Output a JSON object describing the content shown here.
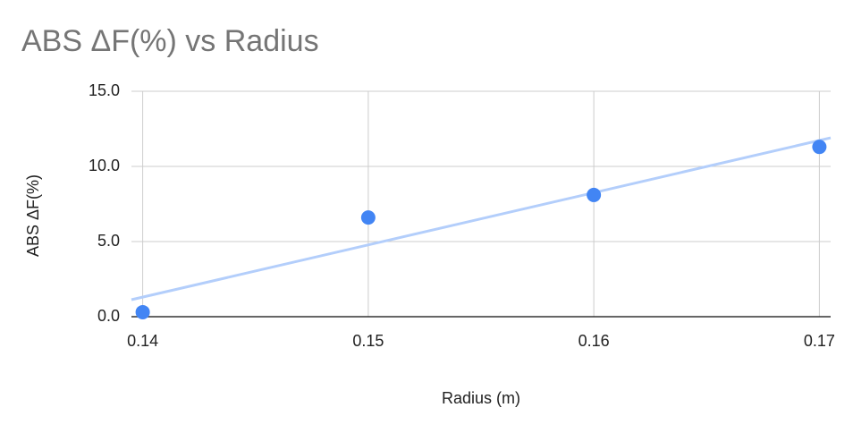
{
  "chart_data": {
    "type": "scatter",
    "title": "ABS ΔF(%) vs Radius",
    "x_label": "Radius (m)",
    "y_label": "ABS ΔF(%)",
    "series": [
      {
        "name": "ABS ΔF(%)",
        "color": "#4285f4",
        "x": [
          0.14,
          0.15,
          0.16,
          0.17
        ],
        "values": [
          0.3,
          6.6,
          8.1,
          11.3
        ]
      }
    ],
    "trendline": {
      "color": "#b3cefb",
      "x": [
        0.1395,
        0.1705
      ],
      "values": [
        1.13,
        11.9
      ]
    },
    "xlim": [
      0.1395,
      0.1705
    ],
    "xticks": [
      0.14,
      0.15,
      0.16,
      0.17
    ],
    "ylim": [
      0,
      15
    ],
    "yticks": [
      {
        "value": 0,
        "label": "0.0"
      },
      {
        "value": 5,
        "label": "5.0"
      },
      {
        "value": 10,
        "label": "10.0"
      },
      {
        "value": 15,
        "label": "15.0"
      }
    ],
    "grid": true
  }
}
